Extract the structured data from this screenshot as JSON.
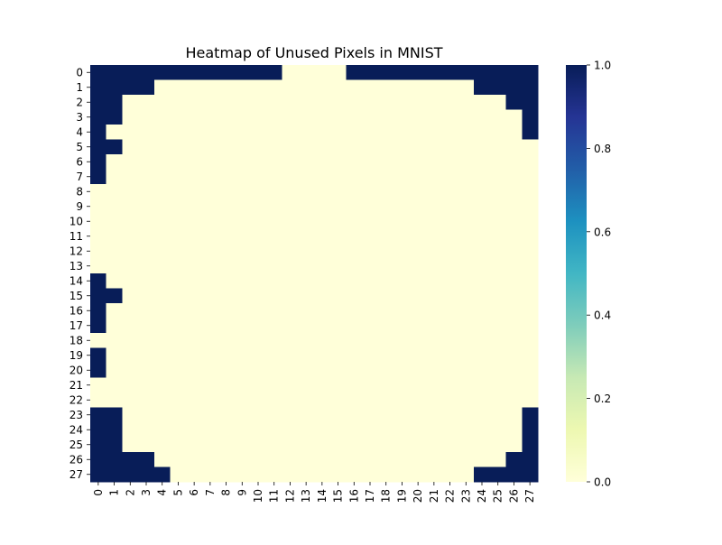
{
  "chart_data": {
    "type": "heatmap",
    "title": "Heatmap of Unused Pixels in MNIST",
    "xlabel": "",
    "ylabel": "",
    "x_categories": [
      "0",
      "1",
      "2",
      "3",
      "4",
      "5",
      "6",
      "7",
      "8",
      "9",
      "10",
      "11",
      "12",
      "13",
      "14",
      "15",
      "16",
      "17",
      "18",
      "19",
      "20",
      "21",
      "22",
      "23",
      "24",
      "25",
      "26",
      "27"
    ],
    "y_categories": [
      "0",
      "1",
      "2",
      "3",
      "4",
      "5",
      "6",
      "7",
      "8",
      "9",
      "10",
      "11",
      "12",
      "13",
      "14",
      "15",
      "16",
      "17",
      "18",
      "19",
      "20",
      "21",
      "22",
      "23",
      "24",
      "25",
      "26",
      "27"
    ],
    "values": [
      [
        1,
        1,
        1,
        1,
        1,
        1,
        1,
        1,
        1,
        1,
        1,
        1,
        0,
        0,
        0,
        0,
        1,
        1,
        1,
        1,
        1,
        1,
        1,
        1,
        1,
        1,
        1,
        1
      ],
      [
        1,
        1,
        1,
        1,
        0,
        0,
        0,
        0,
        0,
        0,
        0,
        0,
        0,
        0,
        0,
        0,
        0,
        0,
        0,
        0,
        0,
        0,
        0,
        0,
        1,
        1,
        1,
        1
      ],
      [
        1,
        1,
        0,
        0,
        0,
        0,
        0,
        0,
        0,
        0,
        0,
        0,
        0,
        0,
        0,
        0,
        0,
        0,
        0,
        0,
        0,
        0,
        0,
        0,
        0,
        0,
        1,
        1
      ],
      [
        1,
        1,
        0,
        0,
        0,
        0,
        0,
        0,
        0,
        0,
        0,
        0,
        0,
        0,
        0,
        0,
        0,
        0,
        0,
        0,
        0,
        0,
        0,
        0,
        0,
        0,
        0,
        1
      ],
      [
        1,
        0,
        0,
        0,
        0,
        0,
        0,
        0,
        0,
        0,
        0,
        0,
        0,
        0,
        0,
        0,
        0,
        0,
        0,
        0,
        0,
        0,
        0,
        0,
        0,
        0,
        0,
        1
      ],
      [
        1,
        1,
        0,
        0,
        0,
        0,
        0,
        0,
        0,
        0,
        0,
        0,
        0,
        0,
        0,
        0,
        0,
        0,
        0,
        0,
        0,
        0,
        0,
        0,
        0,
        0,
        0,
        0
      ],
      [
        1,
        0,
        0,
        0,
        0,
        0,
        0,
        0,
        0,
        0,
        0,
        0,
        0,
        0,
        0,
        0,
        0,
        0,
        0,
        0,
        0,
        0,
        0,
        0,
        0,
        0,
        0,
        0
      ],
      [
        1,
        0,
        0,
        0,
        0,
        0,
        0,
        0,
        0,
        0,
        0,
        0,
        0,
        0,
        0,
        0,
        0,
        0,
        0,
        0,
        0,
        0,
        0,
        0,
        0,
        0,
        0,
        0
      ],
      [
        0,
        0,
        0,
        0,
        0,
        0,
        0,
        0,
        0,
        0,
        0,
        0,
        0,
        0,
        0,
        0,
        0,
        0,
        0,
        0,
        0,
        0,
        0,
        0,
        0,
        0,
        0,
        0
      ],
      [
        0,
        0,
        0,
        0,
        0,
        0,
        0,
        0,
        0,
        0,
        0,
        0,
        0,
        0,
        0,
        0,
        0,
        0,
        0,
        0,
        0,
        0,
        0,
        0,
        0,
        0,
        0,
        0
      ],
      [
        0,
        0,
        0,
        0,
        0,
        0,
        0,
        0,
        0,
        0,
        0,
        0,
        0,
        0,
        0,
        0,
        0,
        0,
        0,
        0,
        0,
        0,
        0,
        0,
        0,
        0,
        0,
        0
      ],
      [
        0,
        0,
        0,
        0,
        0,
        0,
        0,
        0,
        0,
        0,
        0,
        0,
        0,
        0,
        0,
        0,
        0,
        0,
        0,
        0,
        0,
        0,
        0,
        0,
        0,
        0,
        0,
        0
      ],
      [
        0,
        0,
        0,
        0,
        0,
        0,
        0,
        0,
        0,
        0,
        0,
        0,
        0,
        0,
        0,
        0,
        0,
        0,
        0,
        0,
        0,
        0,
        0,
        0,
        0,
        0,
        0,
        0
      ],
      [
        0,
        0,
        0,
        0,
        0,
        0,
        0,
        0,
        0,
        0,
        0,
        0,
        0,
        0,
        0,
        0,
        0,
        0,
        0,
        0,
        0,
        0,
        0,
        0,
        0,
        0,
        0,
        0
      ],
      [
        1,
        0,
        0,
        0,
        0,
        0,
        0,
        0,
        0,
        0,
        0,
        0,
        0,
        0,
        0,
        0,
        0,
        0,
        0,
        0,
        0,
        0,
        0,
        0,
        0,
        0,
        0,
        0
      ],
      [
        1,
        1,
        0,
        0,
        0,
        0,
        0,
        0,
        0,
        0,
        0,
        0,
        0,
        0,
        0,
        0,
        0,
        0,
        0,
        0,
        0,
        0,
        0,
        0,
        0,
        0,
        0,
        0
      ],
      [
        1,
        0,
        0,
        0,
        0,
        0,
        0,
        0,
        0,
        0,
        0,
        0,
        0,
        0,
        0,
        0,
        0,
        0,
        0,
        0,
        0,
        0,
        0,
        0,
        0,
        0,
        0,
        0
      ],
      [
        1,
        0,
        0,
        0,
        0,
        0,
        0,
        0,
        0,
        0,
        0,
        0,
        0,
        0,
        0,
        0,
        0,
        0,
        0,
        0,
        0,
        0,
        0,
        0,
        0,
        0,
        0,
        0
      ],
      [
        0,
        0,
        0,
        0,
        0,
        0,
        0,
        0,
        0,
        0,
        0,
        0,
        0,
        0,
        0,
        0,
        0,
        0,
        0,
        0,
        0,
        0,
        0,
        0,
        0,
        0,
        0,
        0
      ],
      [
        1,
        0,
        0,
        0,
        0,
        0,
        0,
        0,
        0,
        0,
        0,
        0,
        0,
        0,
        0,
        0,
        0,
        0,
        0,
        0,
        0,
        0,
        0,
        0,
        0,
        0,
        0,
        0
      ],
      [
        1,
        0,
        0,
        0,
        0,
        0,
        0,
        0,
        0,
        0,
        0,
        0,
        0,
        0,
        0,
        0,
        0,
        0,
        0,
        0,
        0,
        0,
        0,
        0,
        0,
        0,
        0,
        0
      ],
      [
        0,
        0,
        0,
        0,
        0,
        0,
        0,
        0,
        0,
        0,
        0,
        0,
        0,
        0,
        0,
        0,
        0,
        0,
        0,
        0,
        0,
        0,
        0,
        0,
        0,
        0,
        0,
        0
      ],
      [
        0,
        0,
        0,
        0,
        0,
        0,
        0,
        0,
        0,
        0,
        0,
        0,
        0,
        0,
        0,
        0,
        0,
        0,
        0,
        0,
        0,
        0,
        0,
        0,
        0,
        0,
        0,
        0
      ],
      [
        1,
        1,
        0,
        0,
        0,
        0,
        0,
        0,
        0,
        0,
        0,
        0,
        0,
        0,
        0,
        0,
        0,
        0,
        0,
        0,
        0,
        0,
        0,
        0,
        0,
        0,
        0,
        1
      ],
      [
        1,
        1,
        0,
        0,
        0,
        0,
        0,
        0,
        0,
        0,
        0,
        0,
        0,
        0,
        0,
        0,
        0,
        0,
        0,
        0,
        0,
        0,
        0,
        0,
        0,
        0,
        0,
        1
      ],
      [
        1,
        1,
        0,
        0,
        0,
        0,
        0,
        0,
        0,
        0,
        0,
        0,
        0,
        0,
        0,
        0,
        0,
        0,
        0,
        0,
        0,
        0,
        0,
        0,
        0,
        0,
        0,
        1
      ],
      [
        1,
        1,
        1,
        1,
        0,
        0,
        0,
        0,
        0,
        0,
        0,
        0,
        0,
        0,
        0,
        0,
        0,
        0,
        0,
        0,
        0,
        0,
        0,
        0,
        0,
        0,
        1,
        1
      ],
      [
        1,
        1,
        1,
        1,
        1,
        0,
        0,
        0,
        0,
        0,
        0,
        0,
        0,
        0,
        0,
        0,
        0,
        0,
        0,
        0,
        0,
        0,
        0,
        0,
        1,
        1,
        1,
        1
      ]
    ],
    "vmin": 0,
    "vmax": 1,
    "colormap": "YlGnBu",
    "colormap_stops": [
      "#ffffd9",
      "#edf8b1",
      "#c7e9b4",
      "#7fcdbb",
      "#41b6c4",
      "#1d91c0",
      "#225ea8",
      "#253494",
      "#081d58"
    ],
    "colorbar": {
      "ticks": [
        0.0,
        0.2,
        0.4,
        0.6,
        0.8,
        1.0
      ],
      "tick_labels": [
        "0.0",
        "0.2",
        "0.4",
        "0.6",
        "0.8",
        "1.0"
      ]
    },
    "grid": false,
    "legend": "colorbar-right"
  }
}
